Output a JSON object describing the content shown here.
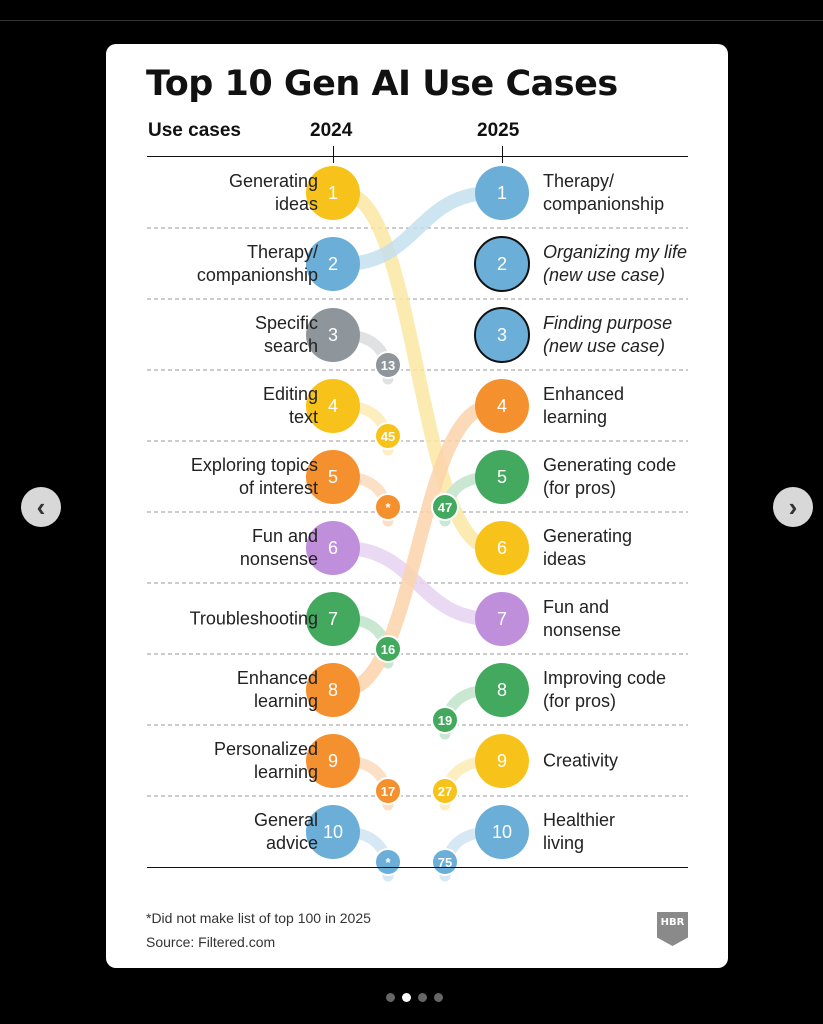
{
  "title": "Top 10 Gen AI Use Cases",
  "headers": {
    "use_cases": "Use cases",
    "year_left": "2024",
    "year_right": "2025"
  },
  "footnote": "*Did not make list of top 100 in 2025",
  "source": "Source: Filtered.com",
  "logo": "HBR",
  "nav": {
    "prev_icon": "chevron-left-icon",
    "next_icon": "chevron-right-icon",
    "prev_glyph": "‹",
    "next_glyph": "›"
  },
  "pagination": {
    "count": 4,
    "active": 2
  },
  "colors": {
    "yellow": "#F7C31A",
    "blue": "#6BAED8",
    "gray": "#8E959B",
    "orange": "#F5902F",
    "purple": "#C08FDB",
    "green": "#42A95E"
  },
  "chart_data": {
    "type": "table",
    "title": "Top 10 Gen AI Use Cases",
    "columns": [
      "2024",
      "2025"
    ],
    "rows_2024": [
      {
        "rank": 1,
        "label": "Generating\nideas",
        "color": "yellow",
        "rank_2025": "6"
      },
      {
        "rank": 2,
        "label": "Therapy/\ncompanionship",
        "color": "blue",
        "rank_2025": "1"
      },
      {
        "rank": 3,
        "label": "Specific\nsearch",
        "color": "gray",
        "rank_2025": "13"
      },
      {
        "rank": 4,
        "label": "Editing\ntext",
        "color": "yellow",
        "rank_2025": "45"
      },
      {
        "rank": 5,
        "label": "Exploring topics\nof interest",
        "color": "orange",
        "rank_2025": "*"
      },
      {
        "rank": 6,
        "label": "Fun and\nnonsense",
        "color": "purple",
        "rank_2025": "7"
      },
      {
        "rank": 7,
        "label": "Troubleshooting",
        "color": "green",
        "rank_2025": "16"
      },
      {
        "rank": 8,
        "label": "Enhanced\nlearning",
        "color": "orange",
        "rank_2025": "4"
      },
      {
        "rank": 9,
        "label": "Personalized\nlearning",
        "color": "orange",
        "rank_2025": "17"
      },
      {
        "rank": 10,
        "label": "General\nadvice",
        "color": "blue",
        "rank_2025": "*"
      }
    ],
    "rows_2025": [
      {
        "rank": 1,
        "label": "Therapy/\ncompanionship",
        "color": "blue",
        "new": false,
        "rank_2024": "2"
      },
      {
        "rank": 2,
        "label": "Organizing my life\n(new use case)",
        "color": "blue",
        "new": true,
        "rank_2024": null
      },
      {
        "rank": 3,
        "label": "Finding purpose\n(new use case)",
        "color": "blue",
        "new": true,
        "rank_2024": null
      },
      {
        "rank": 4,
        "label": "Enhanced\nlearning",
        "color": "orange",
        "new": false,
        "rank_2024": "8"
      },
      {
        "rank": 5,
        "label": "Generating code\n(for pros)",
        "color": "green",
        "new": false,
        "rank_2024": "47"
      },
      {
        "rank": 6,
        "label": "Generating\nideas",
        "color": "yellow",
        "new": false,
        "rank_2024": "1"
      },
      {
        "rank": 7,
        "label": "Fun and\nnonsense",
        "color": "purple",
        "new": false,
        "rank_2024": "6"
      },
      {
        "rank": 8,
        "label": "Improving code\n(for pros)",
        "color": "green",
        "new": false,
        "rank_2024": "19"
      },
      {
        "rank": 9,
        "label": "Creativity",
        "color": "yellow",
        "new": false,
        "rank_2024": "27"
      },
      {
        "rank": 10,
        "label": "Healthier\nliving",
        "color": "blue",
        "new": false,
        "rank_2024": "75"
      }
    ]
  }
}
